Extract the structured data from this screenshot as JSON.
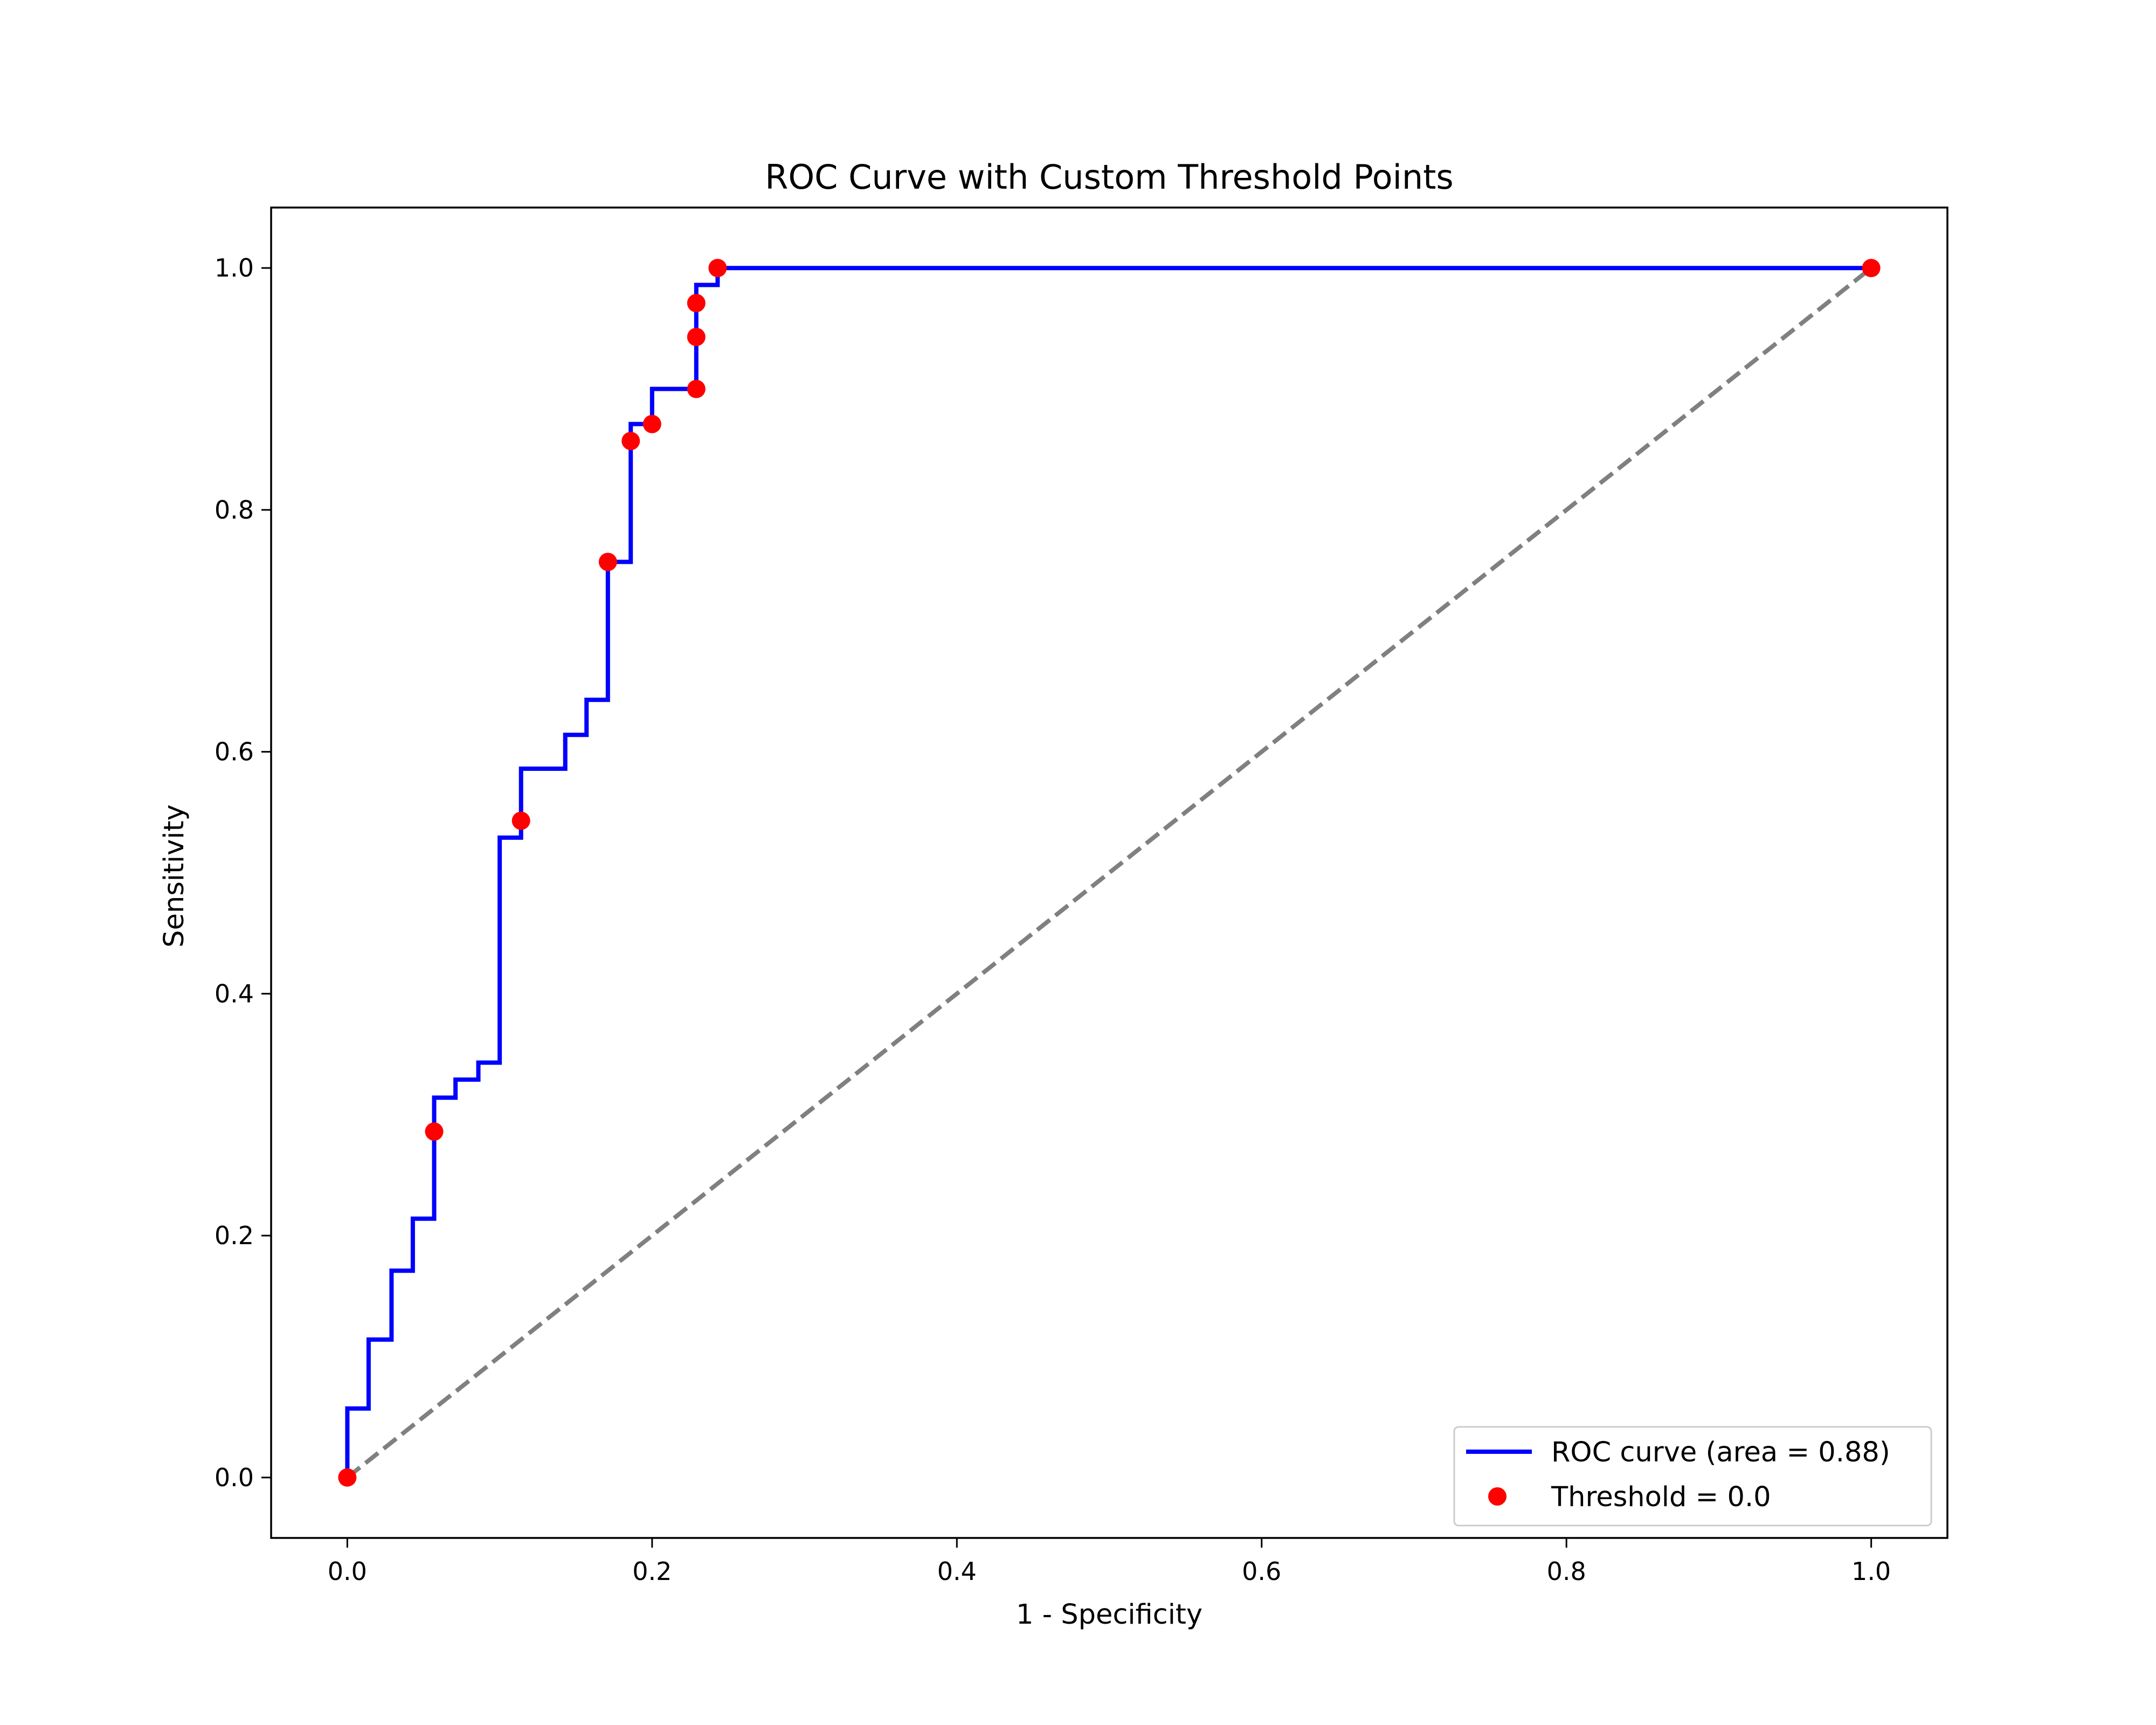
{
  "chart_data": {
    "type": "line",
    "title": "ROC Curve with Custom Threshold Points",
    "xlabel": "1 - Specificity",
    "ylabel": "Sensitivity",
    "xlim": [
      -0.05,
      1.05
    ],
    "ylim": [
      -0.05,
      1.05
    ],
    "xticks": [
      0.0,
      0.2,
      0.4,
      0.6,
      0.8,
      1.0
    ],
    "yticks": [
      0.0,
      0.2,
      0.4,
      0.6,
      0.8,
      1.0
    ],
    "xtick_labels": [
      "0.0",
      "0.2",
      "0.4",
      "0.6",
      "0.8",
      "1.0"
    ],
    "ytick_labels": [
      "0.0",
      "0.2",
      "0.4",
      "0.6",
      "0.8",
      "1.0"
    ],
    "grid": false,
    "legend_position": "lower-right",
    "series": [
      {
        "name": "ROC curve (area = 0.88)",
        "kind": "step-line",
        "color": "#0000ff",
        "x": [
          0.0,
          0.0,
          0.014,
          0.014,
          0.029,
          0.029,
          0.043,
          0.043,
          0.057,
          0.057,
          0.071,
          0.071,
          0.086,
          0.086,
          0.1,
          0.1,
          0.114,
          0.114,
          0.143,
          0.143,
          0.157,
          0.157,
          0.171,
          0.171,
          0.186,
          0.186,
          0.2,
          0.2,
          0.229,
          0.229,
          0.243,
          0.243,
          1.0
        ],
        "y": [
          0.0,
          0.057,
          0.057,
          0.114,
          0.114,
          0.171,
          0.171,
          0.214,
          0.214,
          0.314,
          0.314,
          0.329,
          0.329,
          0.343,
          0.343,
          0.529,
          0.529,
          0.586,
          0.586,
          0.614,
          0.614,
          0.643,
          0.643,
          0.757,
          0.757,
          0.871,
          0.871,
          0.9,
          0.9,
          0.986,
          0.986,
          1.0,
          1.0
        ]
      },
      {
        "name": "Threshold = 0.0",
        "kind": "scatter",
        "color": "#ff0000",
        "x": [
          0.0,
          0.057,
          0.114,
          0.171,
          0.186,
          0.2,
          0.229,
          0.229,
          0.229,
          0.243,
          1.0
        ],
        "y": [
          0.0,
          0.286,
          0.543,
          0.757,
          0.857,
          0.871,
          0.9,
          0.943,
          0.971,
          1.0,
          1.0
        ]
      },
      {
        "name": "",
        "kind": "reference-line",
        "color": "#808080",
        "x": [
          0.0,
          1.0
        ],
        "y": [
          0.0,
          1.0
        ]
      }
    ]
  }
}
